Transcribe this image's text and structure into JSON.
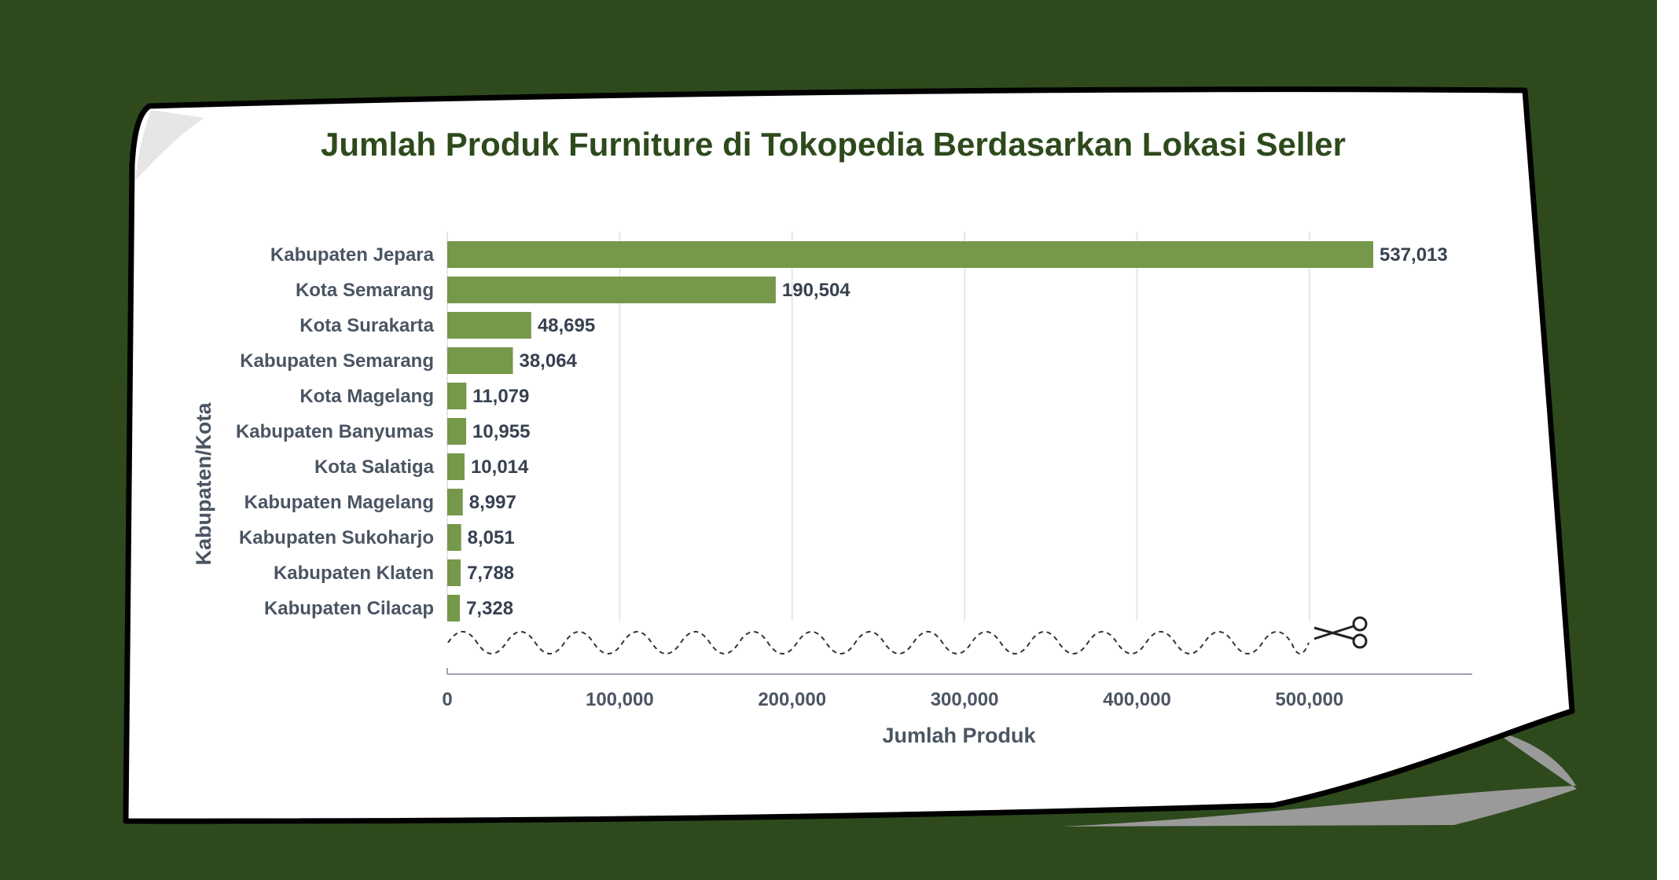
{
  "chart_data": {
    "type": "bar",
    "orientation": "horizontal",
    "title": "Jumlah Produk Furniture di Tokopedia Berdasarkan Lokasi Seller",
    "xlabel": "Jumlah Produk",
    "ylabel": "Kabupaten/Kota",
    "categories": [
      "Kabupaten Jepara",
      "Kota Semarang",
      "Kota Surakarta",
      "Kabupaten Semarang",
      "Kota Magelang",
      "Kabupaten Banyumas",
      "Kota Salatiga",
      "Kabupaten Magelang",
      "Kabupaten Sukoharjo",
      "Kabupaten Klaten",
      "Kabupaten Cilacap"
    ],
    "values": [
      537013,
      190504,
      48695,
      38064,
      11079,
      10955,
      10014,
      8997,
      8051,
      7788,
      7328
    ],
    "value_labels": [
      "537,013",
      "190,504",
      "48,695",
      "38,064",
      "11,079",
      "10,955",
      "10,014",
      "8,997",
      "8,051",
      "7,788",
      "7,328"
    ],
    "x_ticks": [
      0,
      100000,
      200000,
      300000,
      400000,
      500000
    ],
    "x_tick_labels": [
      "0",
      "100,000",
      "200,000",
      "300,000",
      "400,000",
      "500,000"
    ],
    "xlim": [
      0,
      590000
    ],
    "grid": "vertical",
    "axis_break": true,
    "bar_color": "#76984a"
  },
  "colors": {
    "background": "#2e4a1c",
    "paper": "#ffffff",
    "title": "#2e4a1c"
  },
  "decorations": {
    "scissors_icon": "scissors-icon"
  }
}
